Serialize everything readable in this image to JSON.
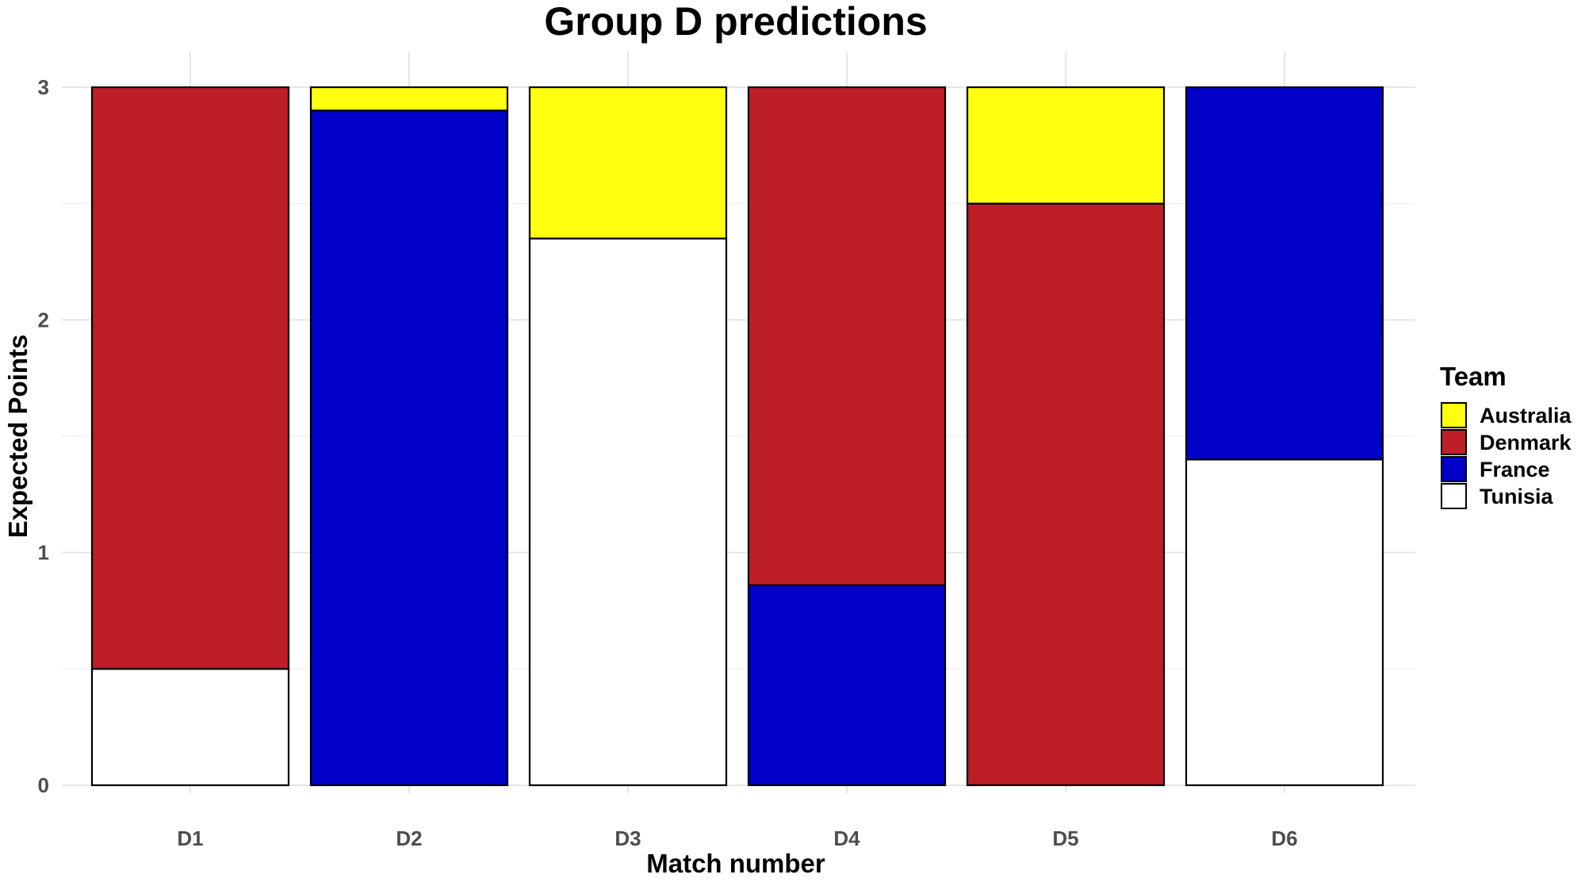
{
  "chart_data": {
    "type": "bar",
    "stacked": true,
    "title": "Group D predictions",
    "xlabel": "Match number",
    "ylabel": "Expected Points",
    "ylim": [
      0,
      3
    ],
    "yticks": [
      "0",
      "1",
      "2",
      "3"
    ],
    "categories": [
      "D1",
      "D2",
      "D3",
      "D4",
      "D5",
      "D6"
    ],
    "legend": {
      "title": "Team",
      "position": "right"
    },
    "grid": true,
    "series": [
      {
        "name": "Tunisia",
        "color": "#ffffff",
        "values": [
          0.5,
          0,
          2.35,
          0,
          0,
          1.4
        ]
      },
      {
        "name": "France",
        "color": "#0000c8",
        "values": [
          0,
          2.9,
          0,
          0.86,
          0,
          1.6
        ]
      },
      {
        "name": "Denmark",
        "color": "#be1e28",
        "values": [
          2.5,
          0,
          0,
          2.14,
          2.5,
          0
        ]
      },
      {
        "name": "Australia",
        "color": "#ffff0f",
        "values": [
          0,
          0.1,
          0.65,
          0,
          0.5,
          0
        ]
      }
    ],
    "legend_order": [
      "Australia",
      "Denmark",
      "France",
      "Tunisia"
    ]
  }
}
